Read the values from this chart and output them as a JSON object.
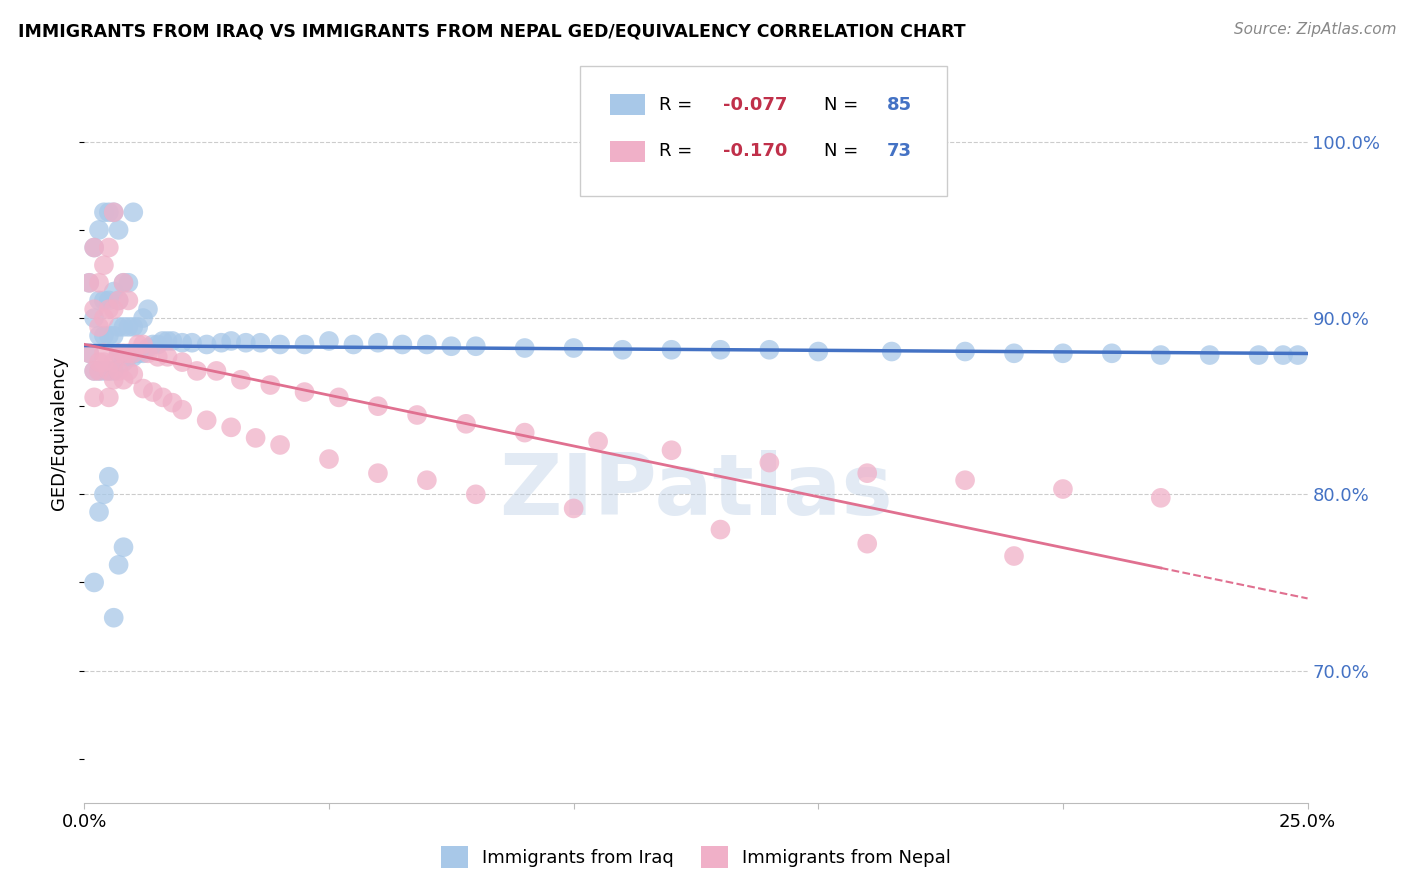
{
  "title": "IMMIGRANTS FROM IRAQ VS IMMIGRANTS FROM NEPAL GED/EQUIVALENCY CORRELATION CHART",
  "source": "Source: ZipAtlas.com",
  "ylabel": "GED/Equivalency",
  "ytick_values": [
    0.7,
    0.8,
    0.9,
    1.0
  ],
  "xlim": [
    0.0,
    0.25
  ],
  "ylim": [
    0.625,
    1.045
  ],
  "color_iraq": "#a8c8e8",
  "color_nepal": "#f0b0c8",
  "line_iraq": "#4472c4",
  "line_nepal": "#e07090",
  "text_color_r": "#c0304a",
  "text_color_n": "#4472c4",
  "watermark": "ZIPatlas",
  "iraq_x": [
    0.001,
    0.001,
    0.002,
    0.002,
    0.002,
    0.003,
    0.003,
    0.003,
    0.003,
    0.004,
    0.004,
    0.004,
    0.004,
    0.005,
    0.005,
    0.005,
    0.005,
    0.006,
    0.006,
    0.006,
    0.006,
    0.007,
    0.007,
    0.007,
    0.007,
    0.008,
    0.008,
    0.008,
    0.009,
    0.009,
    0.009,
    0.01,
    0.01,
    0.01,
    0.011,
    0.011,
    0.012,
    0.012,
    0.013,
    0.013,
    0.014,
    0.015,
    0.016,
    0.017,
    0.018,
    0.02,
    0.022,
    0.025,
    0.028,
    0.03,
    0.033,
    0.036,
    0.04,
    0.045,
    0.05,
    0.055,
    0.06,
    0.065,
    0.07,
    0.075,
    0.08,
    0.09,
    0.1,
    0.11,
    0.12,
    0.13,
    0.14,
    0.15,
    0.165,
    0.18,
    0.19,
    0.2,
    0.21,
    0.22,
    0.23,
    0.24,
    0.245,
    0.248,
    0.002,
    0.003,
    0.004,
    0.005,
    0.006,
    0.007,
    0.008
  ],
  "iraq_y": [
    0.88,
    0.92,
    0.87,
    0.9,
    0.94,
    0.87,
    0.89,
    0.91,
    0.95,
    0.87,
    0.89,
    0.91,
    0.96,
    0.87,
    0.89,
    0.91,
    0.96,
    0.87,
    0.89,
    0.915,
    0.96,
    0.88,
    0.895,
    0.91,
    0.95,
    0.875,
    0.895,
    0.92,
    0.878,
    0.895,
    0.92,
    0.878,
    0.895,
    0.96,
    0.88,
    0.895,
    0.88,
    0.9,
    0.883,
    0.905,
    0.885,
    0.885,
    0.887,
    0.887,
    0.887,
    0.886,
    0.886,
    0.885,
    0.886,
    0.887,
    0.886,
    0.886,
    0.885,
    0.885,
    0.887,
    0.885,
    0.886,
    0.885,
    0.885,
    0.884,
    0.884,
    0.883,
    0.883,
    0.882,
    0.882,
    0.882,
    0.882,
    0.881,
    0.881,
    0.881,
    0.88,
    0.88,
    0.88,
    0.879,
    0.879,
    0.879,
    0.879,
    0.879,
    0.75,
    0.79,
    0.8,
    0.81,
    0.73,
    0.76,
    0.77
  ],
  "nepal_x": [
    0.001,
    0.001,
    0.002,
    0.002,
    0.002,
    0.003,
    0.003,
    0.003,
    0.004,
    0.004,
    0.004,
    0.005,
    0.005,
    0.005,
    0.006,
    0.006,
    0.006,
    0.007,
    0.007,
    0.008,
    0.008,
    0.009,
    0.009,
    0.01,
    0.011,
    0.012,
    0.013,
    0.015,
    0.017,
    0.02,
    0.023,
    0.027,
    0.032,
    0.038,
    0.045,
    0.052,
    0.06,
    0.068,
    0.078,
    0.09,
    0.105,
    0.12,
    0.14,
    0.16,
    0.18,
    0.2,
    0.22,
    0.002,
    0.003,
    0.004,
    0.005,
    0.006,
    0.007,
    0.008,
    0.009,
    0.01,
    0.012,
    0.014,
    0.016,
    0.018,
    0.02,
    0.025,
    0.03,
    0.035,
    0.04,
    0.05,
    0.06,
    0.07,
    0.08,
    0.1,
    0.13,
    0.16,
    0.19
  ],
  "nepal_y": [
    0.88,
    0.92,
    0.87,
    0.905,
    0.94,
    0.87,
    0.895,
    0.92,
    0.875,
    0.9,
    0.93,
    0.87,
    0.905,
    0.94,
    0.875,
    0.905,
    0.96,
    0.88,
    0.91,
    0.88,
    0.92,
    0.88,
    0.91,
    0.88,
    0.885,
    0.885,
    0.88,
    0.878,
    0.878,
    0.875,
    0.87,
    0.87,
    0.865,
    0.862,
    0.858,
    0.855,
    0.85,
    0.845,
    0.84,
    0.835,
    0.83,
    0.825,
    0.818,
    0.812,
    0.808,
    0.803,
    0.798,
    0.855,
    0.875,
    0.88,
    0.855,
    0.865,
    0.87,
    0.865,
    0.87,
    0.868,
    0.86,
    0.858,
    0.855,
    0.852,
    0.848,
    0.842,
    0.838,
    0.832,
    0.828,
    0.82,
    0.812,
    0.808,
    0.8,
    0.792,
    0.78,
    0.772,
    0.765
  ]
}
